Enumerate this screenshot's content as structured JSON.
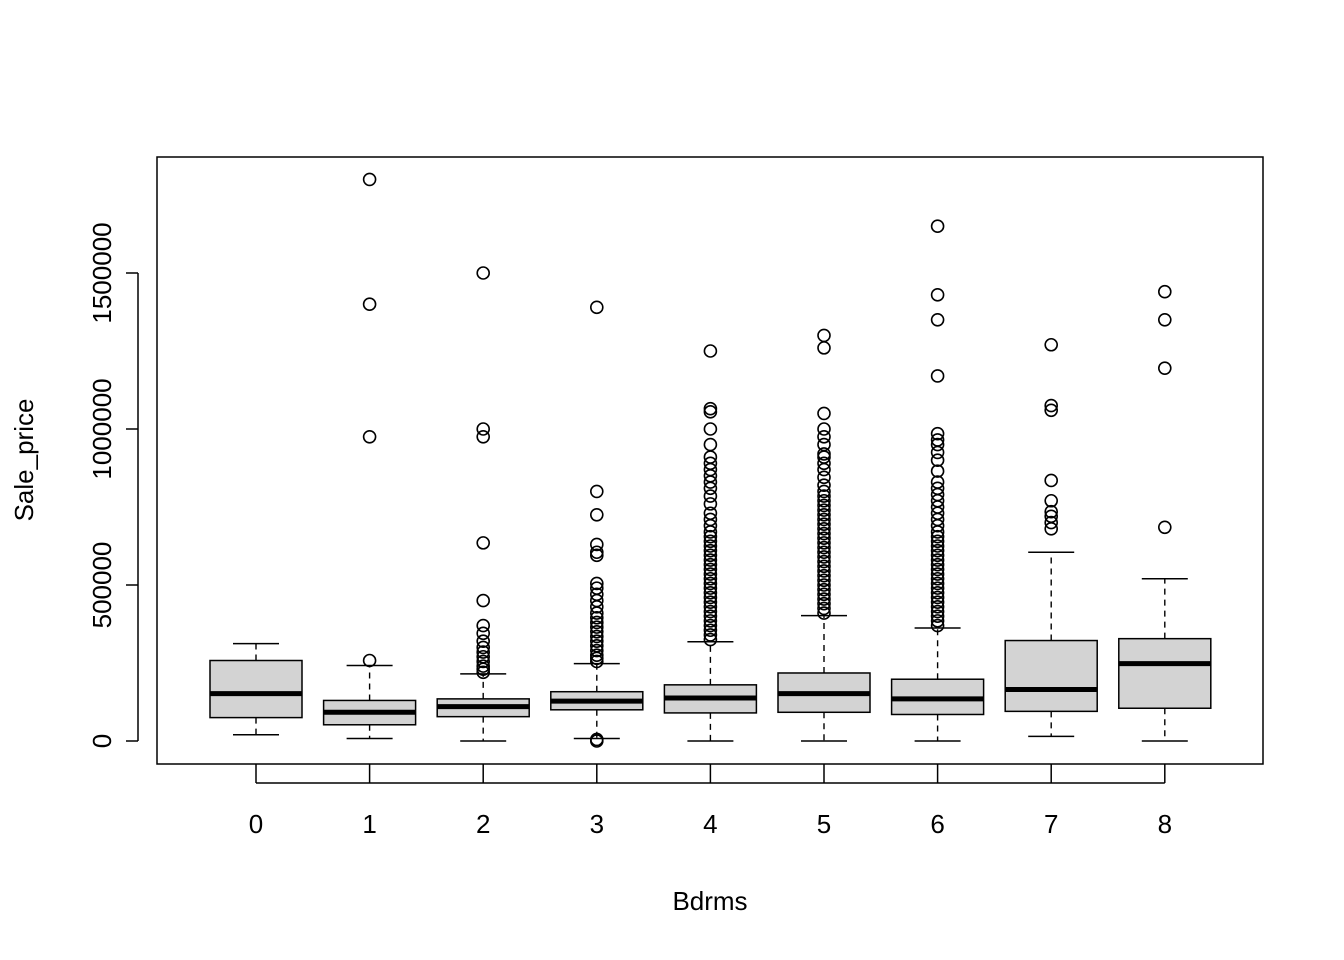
{
  "chart_data": {
    "type": "boxplot",
    "title": "",
    "xlabel": "Bdrms",
    "ylabel": "Sale_price",
    "ylim": [
      -75000,
      1875000
    ],
    "yticks": [
      0,
      500000,
      1000000,
      1500000
    ],
    "ytick_labels": [
      "0",
      "500000",
      "1000000",
      "1500000"
    ],
    "categories": [
      "0",
      "1",
      "2",
      "3",
      "4",
      "5",
      "6",
      "7",
      "8"
    ],
    "box_fill": "#d3d3d3",
    "boxes": [
      {
        "category": "0",
        "whisker_low": 20000,
        "q1": 75000,
        "median": 152000,
        "q3": 258000,
        "whisker_high": 312000,
        "outliers": []
      },
      {
        "category": "1",
        "whisker_low": 8000,
        "q1": 52000,
        "median": 92000,
        "q3": 130000,
        "whisker_high": 242000,
        "outliers": [
          258000,
          975000,
          1400000,
          1800000
        ]
      },
      {
        "category": "2",
        "whisker_low": 0,
        "q1": 78000,
        "median": 110000,
        "q3": 135000,
        "whisker_high": 215000,
        "outliers": [
          220000,
          230000,
          240000,
          255000,
          270000,
          285000,
          300000,
          320000,
          345000,
          370000,
          450000,
          635000,
          975000,
          1000000,
          1500000
        ]
      },
      {
        "category": "3",
        "whisker_low": 8000,
        "q1": 100000,
        "median": 128000,
        "q3": 158000,
        "whisker_high": 248000,
        "outliers": [
          0,
          5000,
          255000,
          265000,
          275000,
          290000,
          305000,
          320000,
          335000,
          350000,
          365000,
          380000,
          395000,
          410000,
          430000,
          450000,
          470000,
          490000,
          505000,
          595000,
          605000,
          630000,
          725000,
          800000,
          1390000
        ]
      },
      {
        "category": "4",
        "whisker_low": 0,
        "q1": 90000,
        "median": 138000,
        "q3": 180000,
        "whisker_high": 318000,
        "outliers": [
          325000,
          340000,
          355000,
          370000,
          385000,
          400000,
          415000,
          430000,
          445000,
          460000,
          475000,
          490000,
          505000,
          520000,
          535000,
          550000,
          565000,
          580000,
          595000,
          610000,
          625000,
          640000,
          655000,
          670000,
          690000,
          710000,
          730000,
          760000,
          785000,
          810000,
          830000,
          850000,
          870000,
          890000,
          910000,
          950000,
          1000000,
          1055000,
          1065000,
          1250000
        ]
      },
      {
        "category": "5",
        "whisker_low": 0,
        "q1": 92000,
        "median": 152000,
        "q3": 218000,
        "whisker_high": 402000,
        "outliers": [
          410000,
          425000,
          440000,
          455000,
          470000,
          485000,
          500000,
          515000,
          530000,
          545000,
          560000,
          575000,
          590000,
          605000,
          620000,
          635000,
          650000,
          665000,
          680000,
          695000,
          710000,
          725000,
          740000,
          755000,
          770000,
          785000,
          800000,
          820000,
          845000,
          870000,
          890000,
          910000,
          920000,
          950000,
          975000,
          1000000,
          1050000,
          1260000,
          1300000
        ]
      },
      {
        "category": "6",
        "whisker_low": 0,
        "q1": 85000,
        "median": 135000,
        "q3": 198000,
        "whisker_high": 362000,
        "outliers": [
          370000,
          385000,
          400000,
          415000,
          430000,
          445000,
          460000,
          475000,
          490000,
          505000,
          520000,
          535000,
          550000,
          565000,
          580000,
          595000,
          610000,
          625000,
          640000,
          655000,
          670000,
          690000,
          710000,
          730000,
          750000,
          770000,
          790000,
          810000,
          830000,
          865000,
          900000,
          925000,
          950000,
          965000,
          985000,
          1170000,
          1350000,
          1430000,
          1650000
        ]
      },
      {
        "category": "7",
        "whisker_low": 15000,
        "q1": 95000,
        "median": 165000,
        "q3": 322000,
        "whisker_high": 605000,
        "outliers": [
          680000,
          700000,
          720000,
          735000,
          770000,
          835000,
          1060000,
          1075000,
          1270000
        ]
      },
      {
        "category": "8",
        "whisker_low": 0,
        "q1": 105000,
        "median": 248000,
        "q3": 328000,
        "whisker_high": 520000,
        "outliers": [
          685000,
          1195000,
          1350000,
          1440000
        ]
      }
    ]
  }
}
